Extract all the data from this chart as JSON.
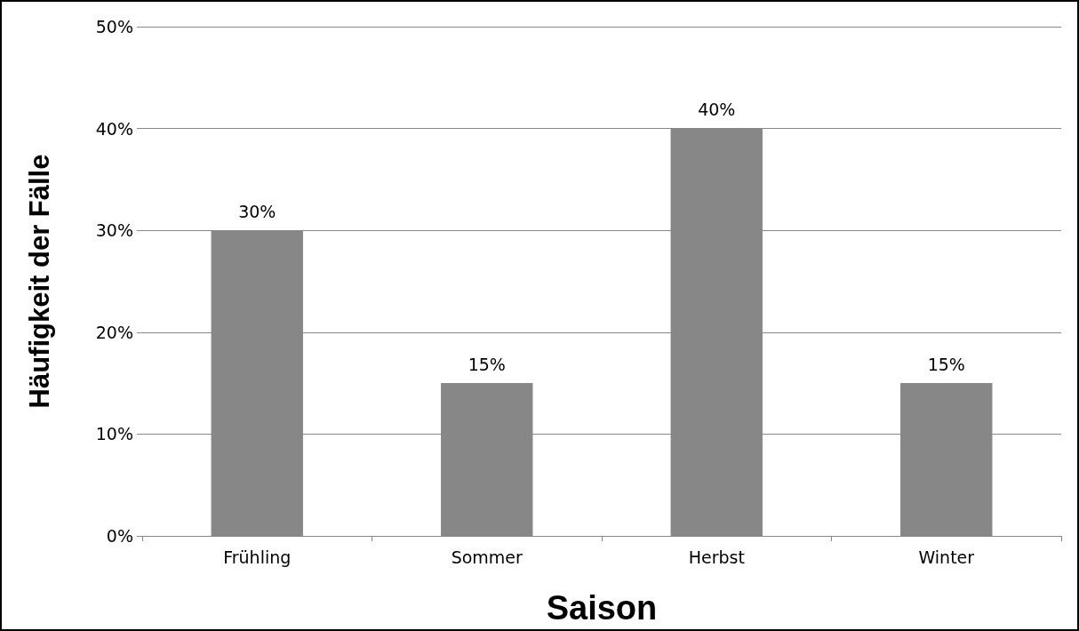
{
  "chart_data": {
    "type": "bar",
    "xlabel": "Saison",
    "ylabel": "Häufigkeit der Fälle",
    "categories": [
      "Frühling",
      "Sommer",
      "Herbst",
      "Winter"
    ],
    "values": [
      30,
      15,
      40,
      15
    ],
    "color": "#878787",
    "value_labels": [
      "30%",
      "15%",
      "40%",
      "15%"
    ],
    "ylim": [
      0,
      50
    ],
    "yticks": [
      {
        "value": 0,
        "label": "0%"
      },
      {
        "value": 10,
        "label": "10%"
      },
      {
        "value": 20,
        "label": "20%"
      },
      {
        "value": 30,
        "label": "30%"
      },
      {
        "value": 40,
        "label": "40%"
      },
      {
        "value": 50,
        "label": "50%"
      }
    ],
    "grid": "y"
  }
}
